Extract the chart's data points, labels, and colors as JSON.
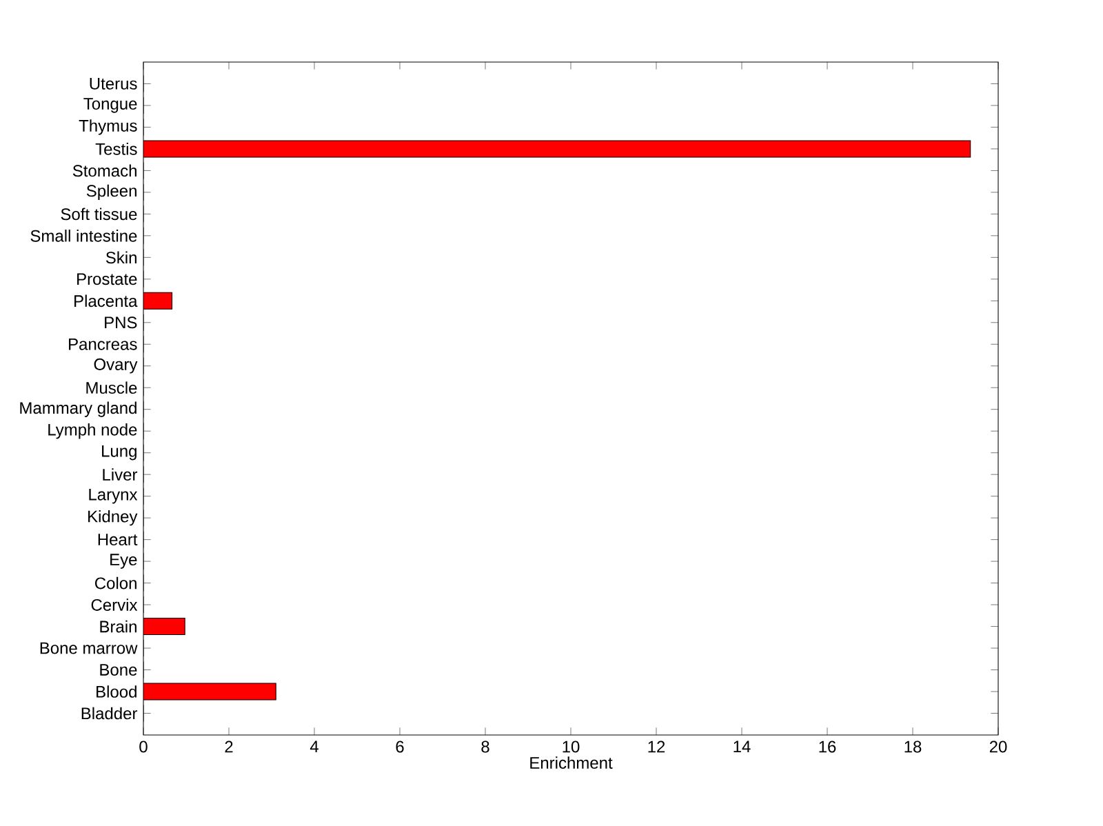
{
  "chart_data": {
    "type": "bar",
    "orientation": "horizontal",
    "xlabel": "Enrichment",
    "categories": [
      "Uterus",
      "Tongue",
      "Thymus",
      "Testis",
      "Stomach",
      "Spleen",
      "Soft tissue",
      "Small intestine",
      "Skin",
      "Prostate",
      "Placenta",
      "PNS",
      "Pancreas",
      "Ovary",
      "Muscle",
      "Mammary gland",
      "Lymph node",
      "Lung",
      "Liver",
      "Larynx",
      "Kidney",
      "Heart",
      "Eye",
      "Colon",
      "Cervix",
      "Brain",
      "Bone marrow",
      "Bone",
      "Blood",
      "Bladder"
    ],
    "values": [
      0,
      0,
      0,
      19.35,
      0,
      0,
      0,
      0,
      0,
      0,
      0.67,
      0,
      0,
      0,
      0,
      0,
      0,
      0,
      0,
      0,
      0,
      0,
      0,
      0,
      0,
      0.97,
      0,
      0,
      3.1,
      0
    ],
    "color": "#ff0000",
    "xlim": [
      0,
      20
    ],
    "xticks": [
      0,
      2,
      4,
      6,
      8,
      10,
      12,
      14,
      16,
      18,
      20
    ]
  }
}
